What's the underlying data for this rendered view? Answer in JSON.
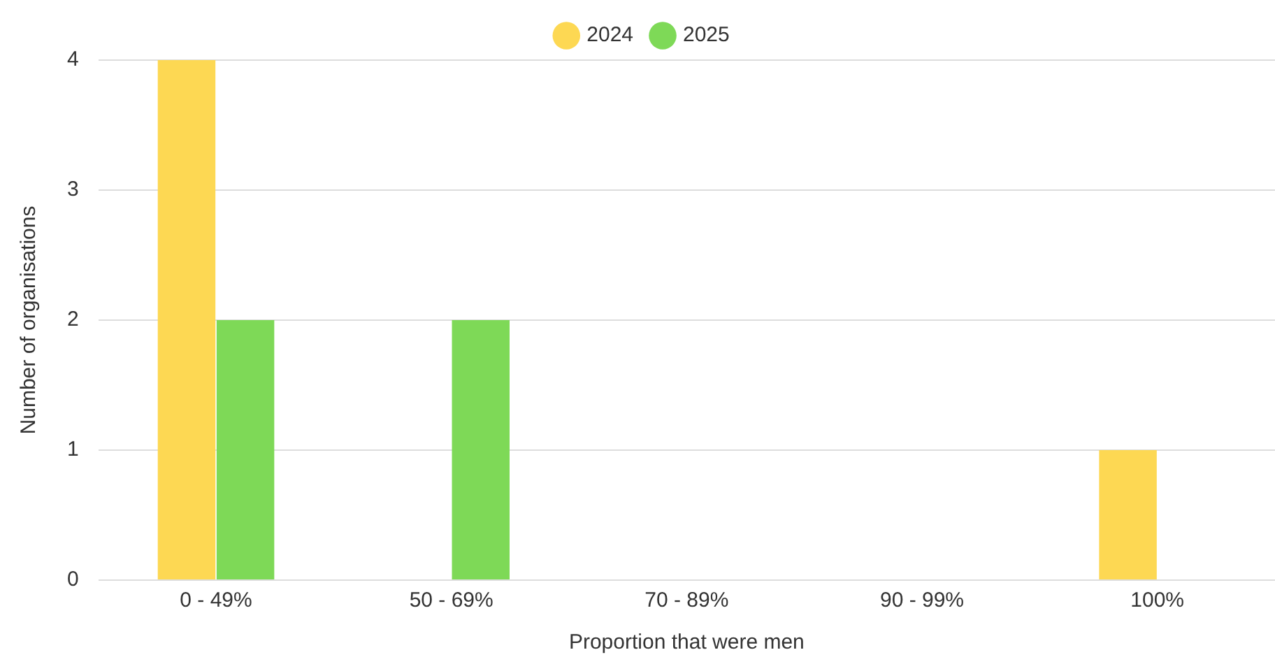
{
  "chart_data": {
    "type": "bar",
    "xlabel": "Proportion that were men",
    "ylabel": "Number of organisations",
    "categories": [
      "0 - 49%",
      "50 - 69%",
      "70 - 89%",
      "90 - 99%",
      "100%"
    ],
    "series": [
      {
        "name": "2024",
        "color": "#fdd853",
        "values": [
          4,
          0,
          0,
          0,
          1
        ]
      },
      {
        "name": "2025",
        "color": "#7ed957",
        "values": [
          2,
          2,
          0,
          0,
          0
        ]
      }
    ],
    "ylim": [
      0,
      4
    ],
    "yticks": [
      0,
      1,
      2,
      3,
      4
    ],
    "grid": "y",
    "legend": "top"
  }
}
